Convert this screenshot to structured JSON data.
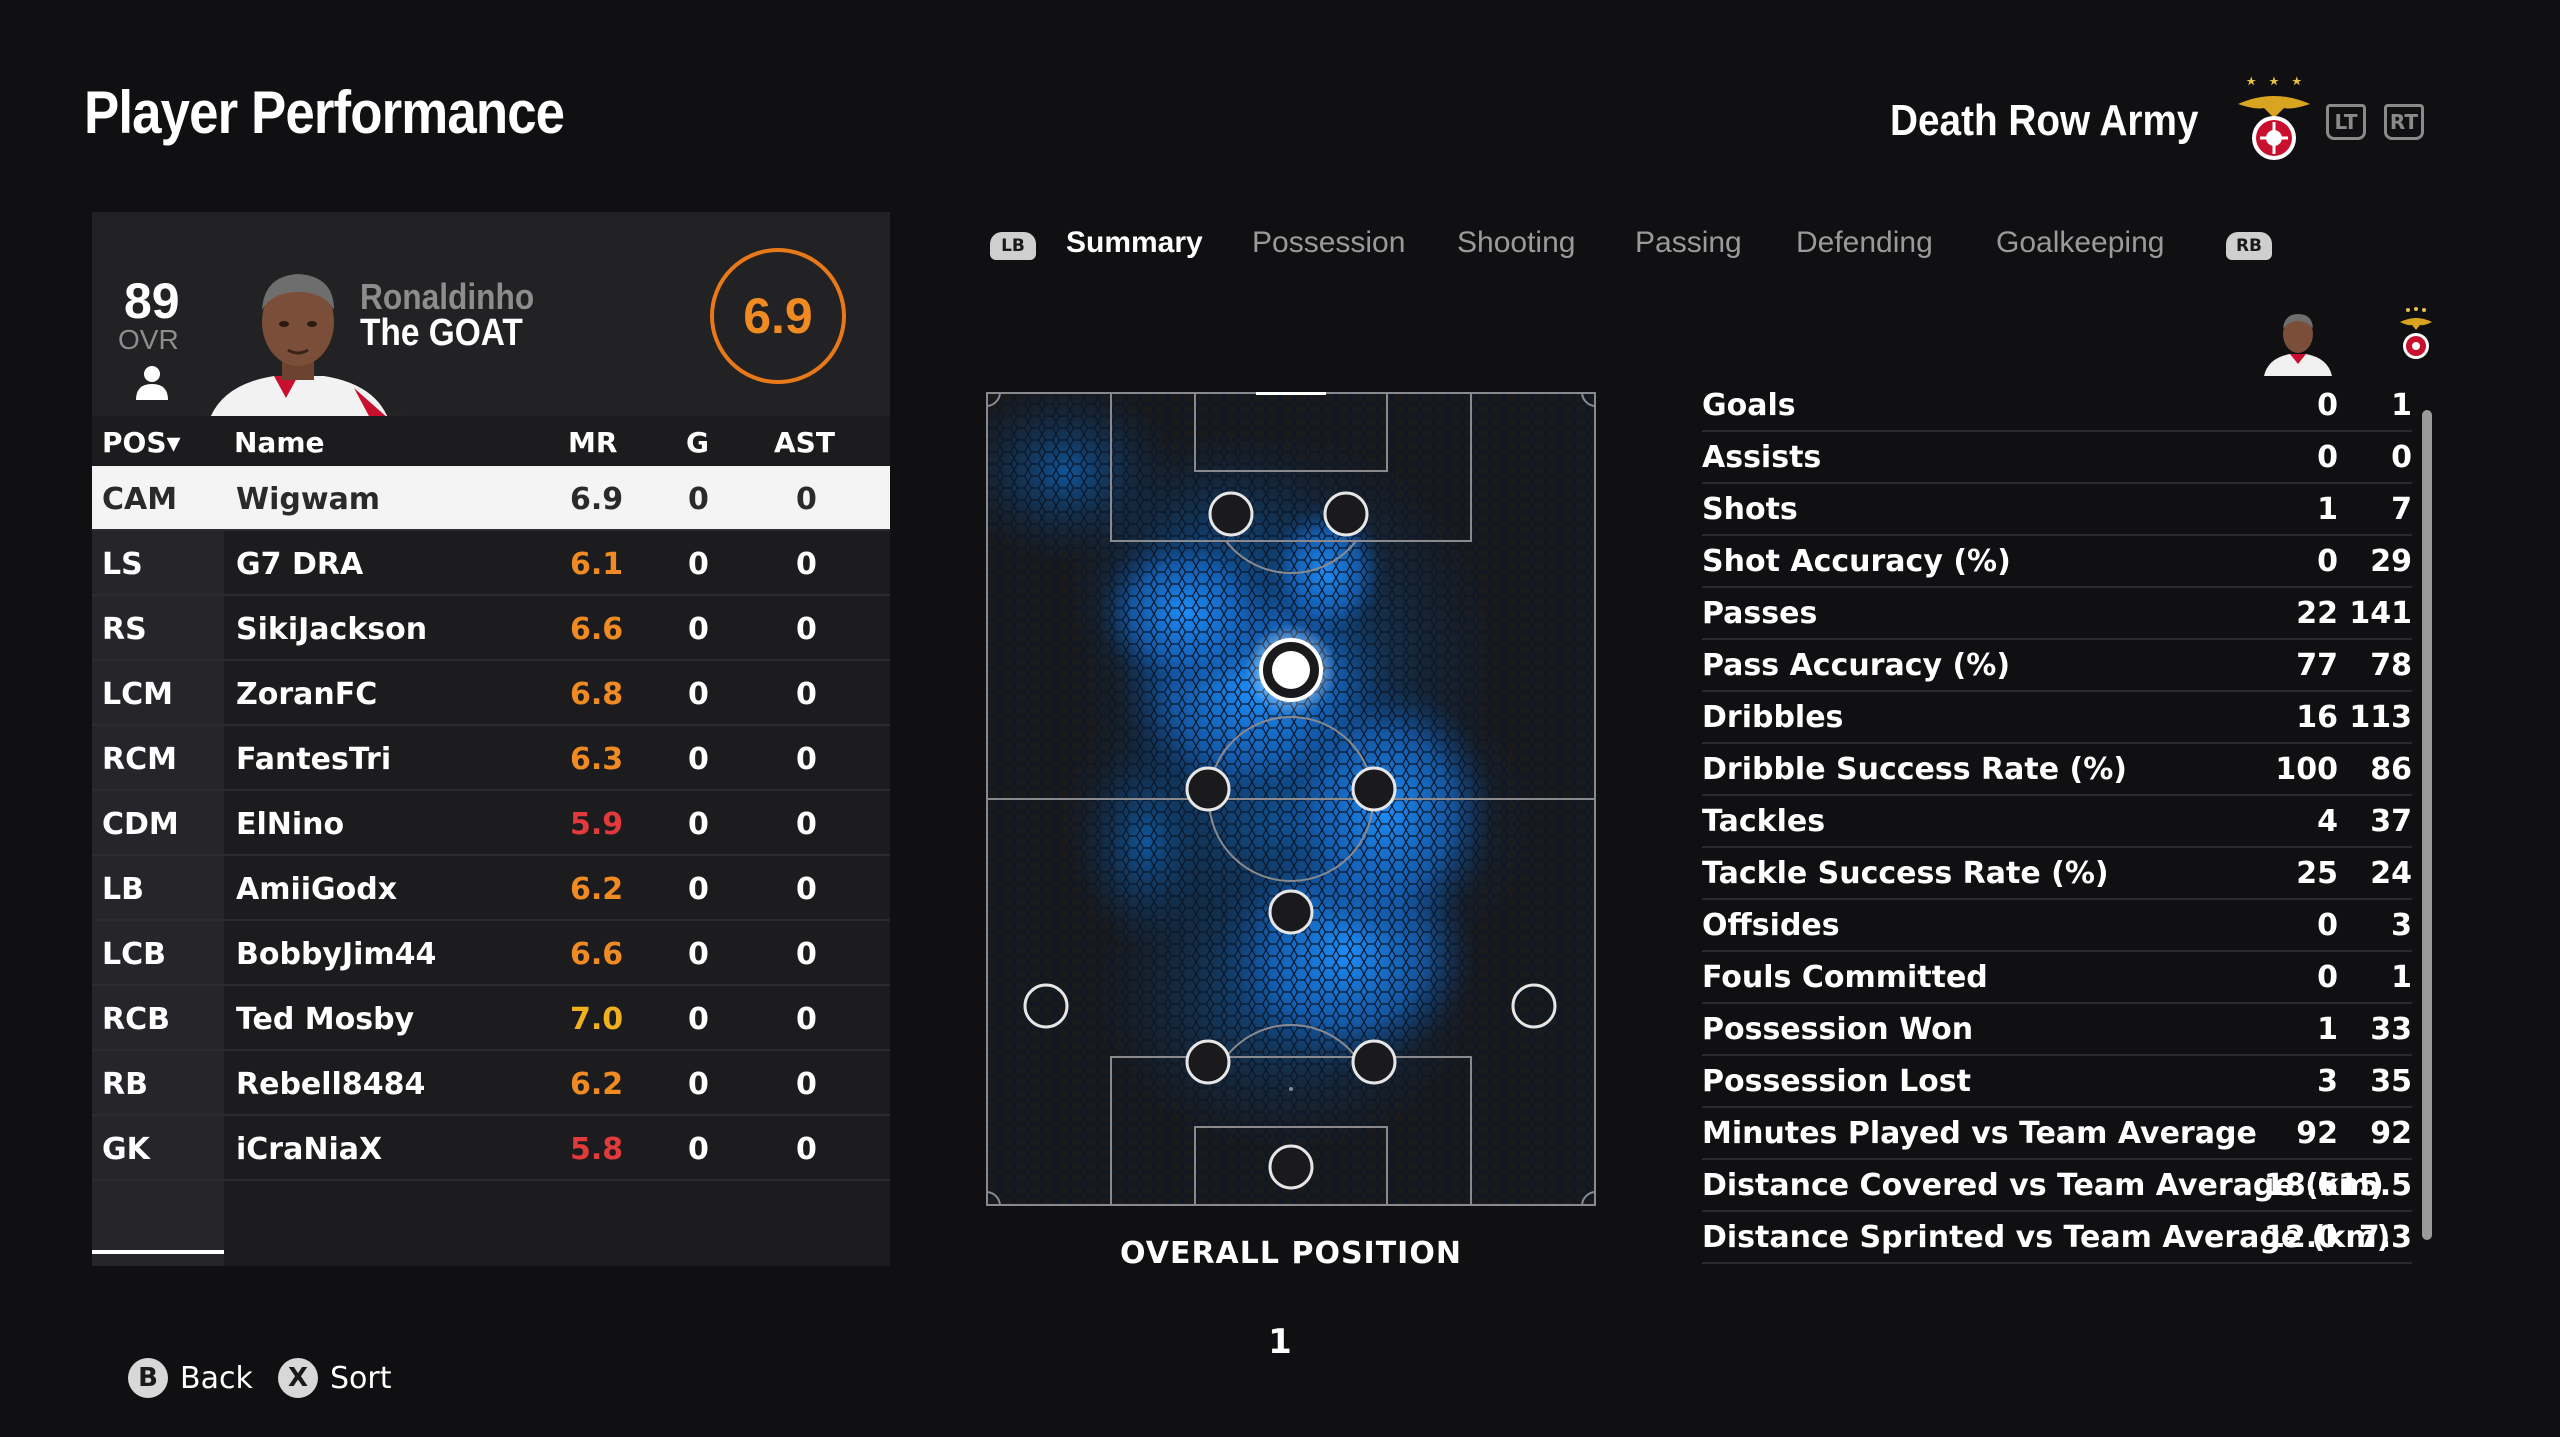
{
  "header": {
    "title": "Player Performance",
    "team_name": "Death Row Army",
    "lt_label": "LT",
    "rt_label": "RT"
  },
  "player_card": {
    "ovr": "89",
    "ovr_label": "OVR",
    "first_name": "Ronaldinho",
    "last_name": "The GOAT",
    "rating": "6.9"
  },
  "table": {
    "headers": {
      "pos": "POS▾",
      "name": "Name",
      "mr": "MR",
      "g": "G",
      "ast": "AST"
    },
    "rows": [
      {
        "pos": "CAM",
        "name": "Wigwam",
        "mr": "6.9",
        "g": "0",
        "ast": "0",
        "mr_color": "#2a2a2a",
        "selected": true
      },
      {
        "pos": "LS",
        "name": "G7 DRA",
        "mr": "6.1",
        "g": "0",
        "ast": "0",
        "mr_color": "#f08a22"
      },
      {
        "pos": "RS",
        "name": "SikiJackson",
        "mr": "6.6",
        "g": "0",
        "ast": "0",
        "mr_color": "#f08a22"
      },
      {
        "pos": "LCM",
        "name": "ZoranFC",
        "mr": "6.8",
        "g": "0",
        "ast": "0",
        "mr_color": "#f08a22"
      },
      {
        "pos": "RCM",
        "name": "FantesTri",
        "mr": "6.3",
        "g": "0",
        "ast": "0",
        "mr_color": "#f08a22"
      },
      {
        "pos": "CDM",
        "name": "ElNino",
        "mr": "5.9",
        "g": "0",
        "ast": "0",
        "mr_color": "#e23a3a"
      },
      {
        "pos": "LB",
        "name": "AmiiGodx",
        "mr": "6.2",
        "g": "0",
        "ast": "0",
        "mr_color": "#f08a22"
      },
      {
        "pos": "LCB",
        "name": "BobbyJim44",
        "mr": "6.6",
        "g": "0",
        "ast": "0",
        "mr_color": "#f08a22"
      },
      {
        "pos": "RCB",
        "name": "Ted Mosby",
        "mr": "7.0",
        "g": "0",
        "ast": "0",
        "mr_color": "#f0b020"
      },
      {
        "pos": "RB",
        "name": "Rebell8484",
        "mr": "6.2",
        "g": "0",
        "ast": "0",
        "mr_color": "#f08a22"
      },
      {
        "pos": "GK",
        "name": "iCraNiaX",
        "mr": "5.8",
        "g": "0",
        "ast": "0",
        "mr_color": "#e23a3a"
      }
    ]
  },
  "tabs": {
    "lb_label": "LB",
    "rb_label": "RB",
    "items": [
      {
        "label": "Summary",
        "active": true
      },
      {
        "label": "Possession"
      },
      {
        "label": "Shooting"
      },
      {
        "label": "Passing"
      },
      {
        "label": "Defending"
      },
      {
        "label": "Goalkeeping"
      }
    ]
  },
  "pitch": {
    "caption": "OVERALL POSITION",
    "page_number": "1"
  },
  "stats": [
    {
      "label": "Goals",
      "player": "0",
      "team": "1"
    },
    {
      "label": "Assists",
      "player": "0",
      "team": "0"
    },
    {
      "label": "Shots",
      "player": "1",
      "team": "7"
    },
    {
      "label": "Shot Accuracy (%)",
      "player": "0",
      "team": "29"
    },
    {
      "label": "Passes",
      "player": "22",
      "team": "141"
    },
    {
      "label": "Pass Accuracy (%)",
      "player": "77",
      "team": "78"
    },
    {
      "label": "Dribbles",
      "player": "16",
      "team": "113"
    },
    {
      "label": "Dribble Success Rate (%)",
      "player": "100",
      "team": "86"
    },
    {
      "label": "Tackles",
      "player": "4",
      "team": "37"
    },
    {
      "label": "Tackle Success Rate (%)",
      "player": "25",
      "team": "24"
    },
    {
      "label": "Offsides",
      "player": "0",
      "team": "3"
    },
    {
      "label": "Fouls Committed",
      "player": "0",
      "team": "1"
    },
    {
      "label": "Possession Won",
      "player": "1",
      "team": "33"
    },
    {
      "label": "Possession Lost",
      "player": "3",
      "team": "35"
    },
    {
      "label": "Minutes Played vs Team Average",
      "player": "92",
      "team": "92"
    },
    {
      "label": "Distance Covered vs Team Average (km)",
      "player": "18.6",
      "team": "15.5"
    },
    {
      "label": "Distance Sprinted vs Team Average (km)",
      "player": "12.0",
      "team": "7.3"
    }
  ],
  "footer": {
    "back_glyph": "B",
    "back_label": "Back",
    "sort_glyph": "X",
    "sort_label": "Sort"
  },
  "colors": {
    "accent_orange": "#f08a22",
    "rating_red": "#e23a3a",
    "rating_gold": "#f0b020",
    "heatmap_blue": "#1e88e5"
  }
}
